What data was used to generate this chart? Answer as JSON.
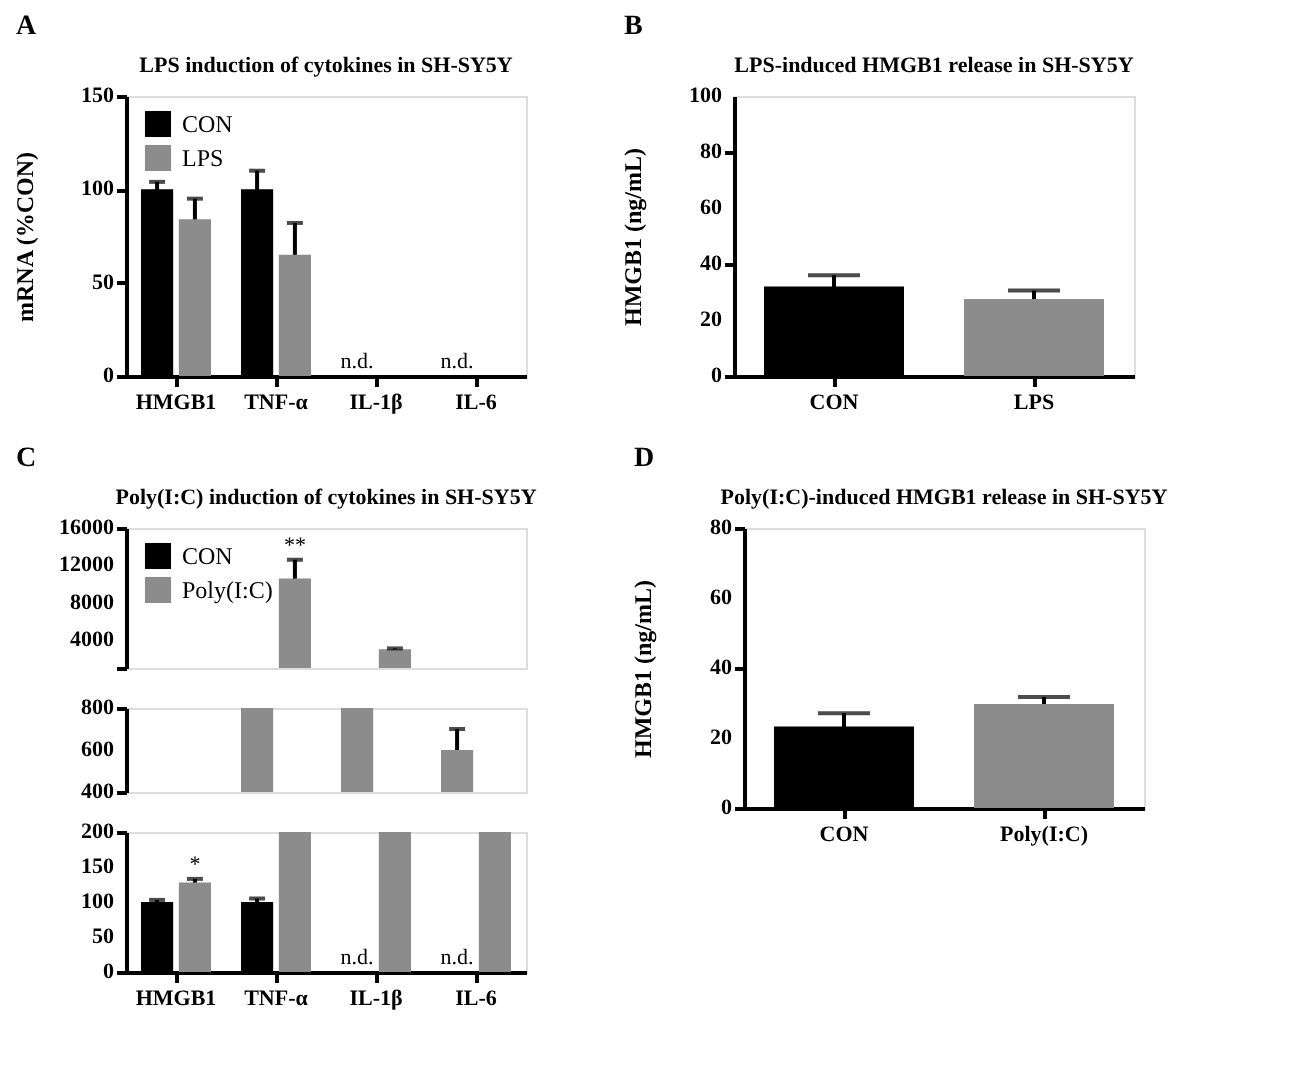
{
  "chart_data": [
    {
      "type": "bar",
      "title": "LPS induction of cytokines in SH-SY5Y",
      "ylabel": "mRNA (%CON)",
      "categories": [
        "HMGB1",
        "TNF-α",
        "IL-1β",
        "IL-6"
      ],
      "series": [
        {
          "name": "CON",
          "color": "#000000",
          "values": [
            100,
            100,
            null,
            null
          ],
          "errors": [
            4,
            10,
            null,
            null
          ],
          "value_labels": [
            null,
            null,
            "n.d.",
            "n.d."
          ]
        },
        {
          "name": "LPS",
          "color": "#8c8c8c",
          "values": [
            84,
            65,
            null,
            null
          ],
          "errors": [
            11,
            17,
            null,
            null
          ]
        }
      ],
      "ylim": [
        0,
        150
      ],
      "yticks": [
        0,
        50,
        100,
        150
      ],
      "legend": "top left",
      "grid": false,
      "annotations": [
        "A"
      ]
    },
    {
      "type": "bar",
      "title": "LPS-induced HMGB1 release in SH-SY5Y",
      "ylabel": "HMGB1 (ng/mL)",
      "categories": [
        "CON",
        "LPS"
      ],
      "values": [
        32,
        27.5
      ],
      "errors": [
        4,
        3
      ],
      "colors": [
        "#000000",
        "#8c8c8c"
      ],
      "ylim": [
        0,
        100
      ],
      "yticks": [
        0,
        20,
        40,
        60,
        80,
        100
      ],
      "grid": false,
      "annotations": [
        "B"
      ]
    },
    {
      "type": "bar",
      "title": "Poly(I:C) induction of cytokines in SH-SY5Y",
      "categories": [
        "HMGB1",
        "TNF-α",
        "IL-1β",
        "IL-6"
      ],
      "series": [
        {
          "name": "CON",
          "color": "#000000",
          "values": [
            null,
            null,
            null,
            null
          ]
        },
        {
          "name": "Poly(I:C)",
          "color": "#8c8c8c",
          "values": [
            null,
            10600,
            3000,
            null
          ],
          "errors": [
            null,
            2000,
            100,
            null
          ],
          "value_labels": [
            null,
            "**",
            null,
            null
          ]
        }
      ],
      "ylim": [
        1000,
        16000
      ],
      "yticks": [
        {
          "value": 1000,
          "label": null
        },
        4000,
        8000,
        12000,
        16000
      ],
      "tick_labels": "y",
      "legend": "top left",
      "grid": false,
      "annotations": [
        "C"
      ]
    },
    {
      "type": "bar",
      "categories": [
        "HMGB1",
        "TNF-α",
        "IL-1β",
        "IL-6"
      ],
      "series": [
        {
          "color": "#8c8c8c",
          "values": [
            null,
            800,
            800,
            600
          ],
          "errors": [
            null,
            null,
            null,
            100
          ]
        }
      ],
      "ylim": [
        400,
        800
      ],
      "yticks": [
        400,
        600,
        800
      ],
      "tick_labels": "y",
      "grid": false
    },
    {
      "type": "bar",
      "categories": [
        "HMGB1",
        "TNF-α",
        "IL-1β",
        "IL-6"
      ],
      "series": [
        {
          "color": "#000000",
          "values": [
            100,
            100,
            null,
            null
          ],
          "errors": [
            3,
            5,
            null,
            null
          ],
          "value_labels": [
            null,
            null,
            "n.d.",
            "n.d."
          ]
        },
        {
          "color": "#8c8c8c",
          "values": [
            128,
            200,
            200,
            200
          ],
          "errors": [
            5,
            null,
            null,
            null
          ],
          "value_labels": [
            "*",
            null,
            null,
            null
          ]
        }
      ],
      "ylim": [
        0,
        200
      ],
      "yticks": [
        0,
        50,
        100,
        150,
        200
      ],
      "grid": false
    },
    {
      "type": "bar",
      "title": "Poly(I:C)-induced HMGB1 release in SH-SY5Y",
      "ylabel": "HMGB1 (ng/mL)",
      "categories": [
        "CON",
        "Poly(I:C)"
      ],
      "values": [
        23.3,
        29.7
      ],
      "errors": [
        3.8,
        2
      ],
      "colors": [
        "#000000",
        "#8c8c8c"
      ],
      "ylim": [
        0,
        80
      ],
      "yticks": [
        0,
        20,
        40,
        60,
        80
      ],
      "grid": false,
      "annotations": [
        "D"
      ]
    }
  ]
}
